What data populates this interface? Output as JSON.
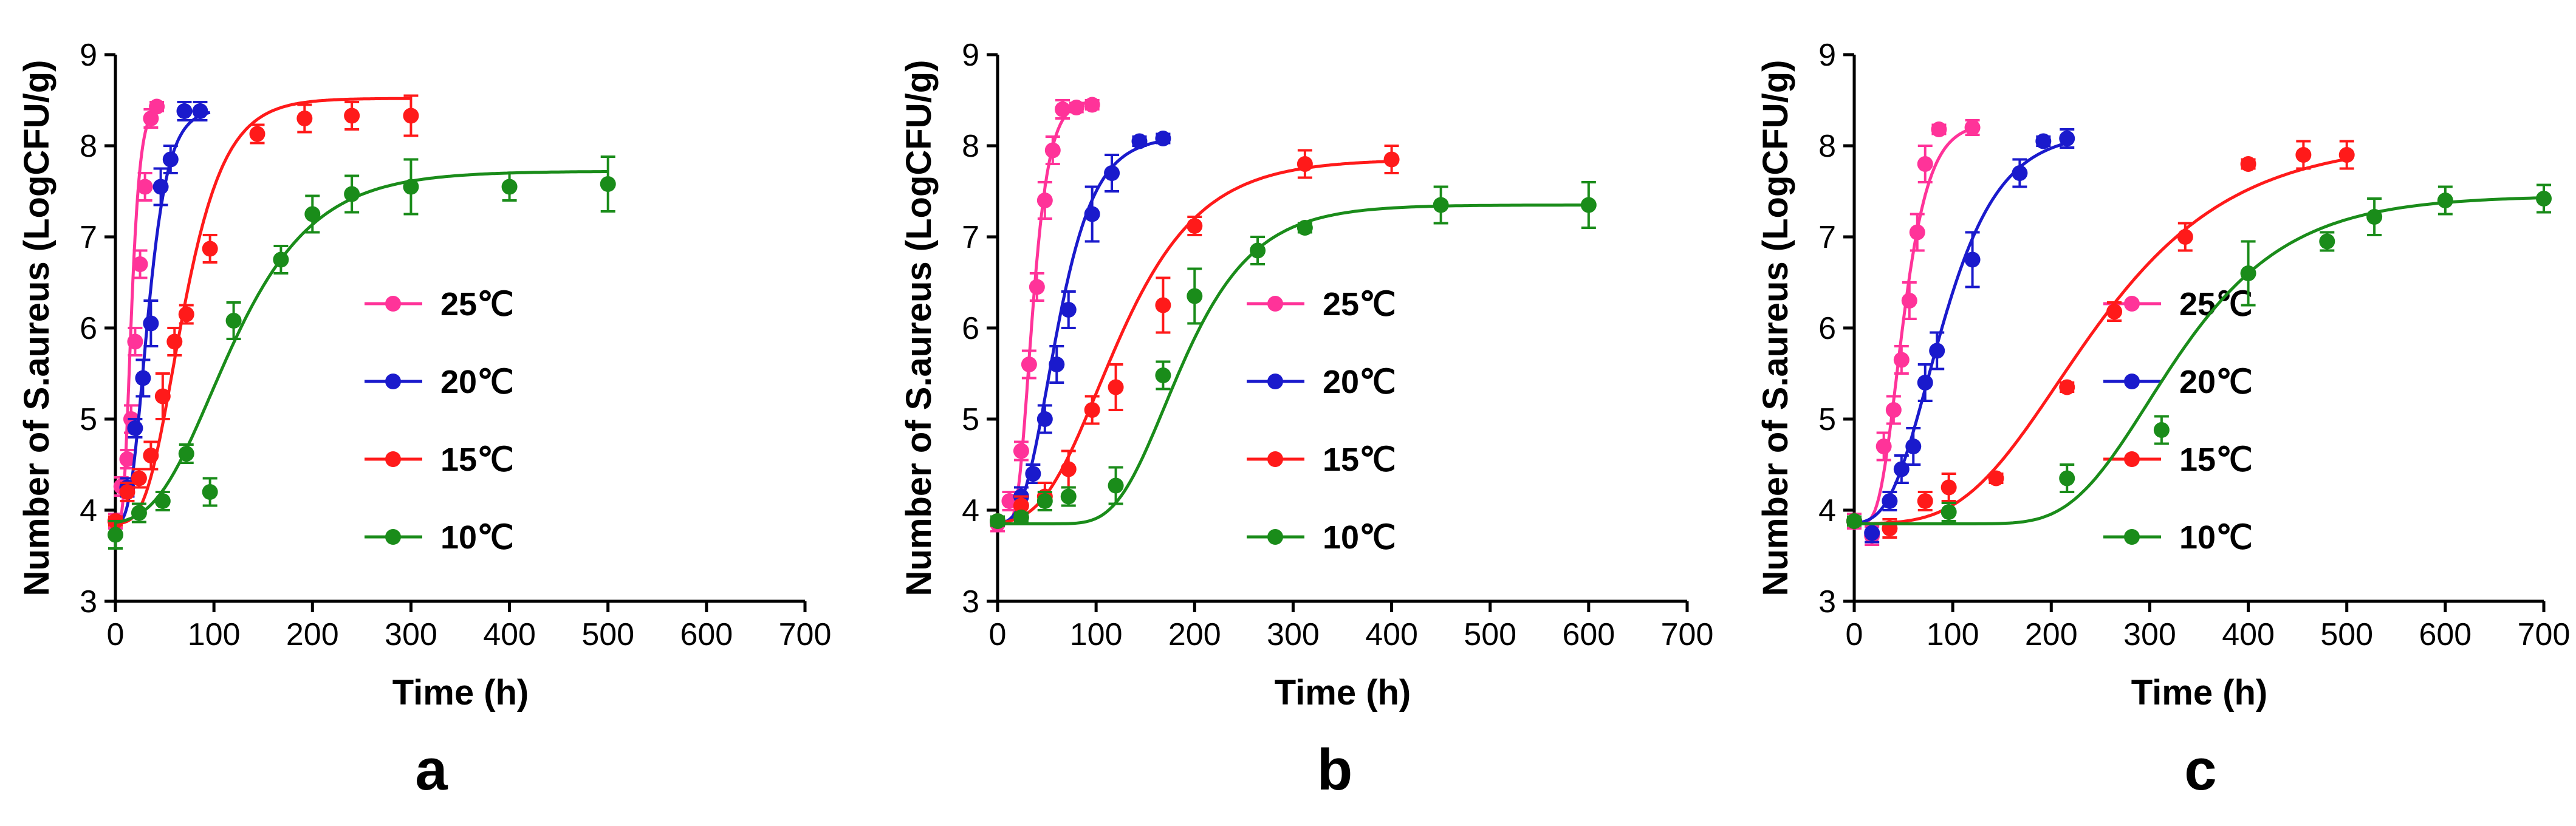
{
  "figure": {
    "panels": [
      "a",
      "b",
      "c"
    ]
  },
  "chart_data": [
    {
      "type": "scatter",
      "panel_label": "a",
      "xlabel": "Time (h)",
      "ylabel": "Number of S.aureus (LogCFU/g)",
      "xlim": [
        0,
        700
      ],
      "ylim": [
        3,
        9
      ],
      "xticks": [
        "0",
        "100",
        "200",
        "300",
        "400",
        "500",
        "600",
        "700"
      ],
      "yticks": [
        "3",
        "4",
        "5",
        "6",
        "7",
        "8",
        "9"
      ],
      "legend_position": "center-right",
      "series": [
        {
          "name": "25℃",
          "color": "#ff3399",
          "x": [
            0,
            6,
            12,
            16,
            20,
            25,
            30,
            36,
            42
          ],
          "y": [
            3.88,
            4.26,
            4.56,
            5.0,
            5.85,
            6.7,
            7.55,
            8.3,
            8.43
          ],
          "err": [
            0.08,
            0.1,
            0.1,
            0.15,
            0.15,
            0.15,
            0.15,
            0.1,
            0.05
          ],
          "fit": {
            "y0": 3.85,
            "ymax": 8.45,
            "mu": 0.28,
            "lag": 8,
            "xmax": 42
          }
        },
        {
          "name": "20℃",
          "color": "#1a1acc",
          "x": [
            0,
            12,
            20,
            28,
            36,
            46,
            56,
            70,
            86
          ],
          "y": [
            3.88,
            4.25,
            4.9,
            5.45,
            6.05,
            7.55,
            7.85,
            8.38,
            8.38
          ],
          "err": [
            0.05,
            0.1,
            0.1,
            0.2,
            0.25,
            0.2,
            0.15,
            0.1,
            0.1
          ],
          "fit": {
            "y0": 3.85,
            "ymax": 8.4,
            "mu": 0.12,
            "lag": 14,
            "xmax": 96
          }
        },
        {
          "name": "15℃",
          "color": "#ff1a1a",
          "x": [
            0,
            12,
            24,
            36,
            48,
            60,
            72,
            96,
            144,
            192,
            240,
            300
          ],
          "y": [
            3.88,
            4.2,
            4.35,
            4.6,
            5.25,
            5.85,
            6.15,
            6.87,
            8.13,
            8.3,
            8.33,
            8.33
          ],
          "err": [
            0.05,
            0.1,
            0.1,
            0.15,
            0.25,
            0.15,
            0.1,
            0.15,
            0.1,
            0.15,
            0.15,
            0.22
          ],
          "fit": {
            "y0": 3.85,
            "ymax": 8.52,
            "mu": 0.06,
            "lag": 30,
            "xmax": 300
          }
        },
        {
          "name": "10℃",
          "color": "#1a8c1a",
          "x": [
            0,
            24,
            48,
            72,
            96,
            120,
            168,
            200,
            240,
            300,
            400,
            500
          ],
          "y": [
            3.73,
            3.97,
            4.1,
            4.62,
            4.2,
            6.08,
            6.75,
            7.25,
            7.47,
            7.55,
            7.55,
            7.58
          ],
          "err": [
            0.15,
            0.1,
            0.1,
            0.1,
            0.15,
            0.2,
            0.15,
            0.2,
            0.2,
            0.3,
            0.15,
            0.3
          ],
          "fit": {
            "y0": 3.85,
            "ymax": 7.72,
            "mu": 0.025,
            "lag": 40,
            "xmax": 500
          }
        }
      ]
    },
    {
      "type": "scatter",
      "panel_label": "b",
      "xlabel": "Time (h)",
      "ylabel": "Number of S.aureus (LogCFU/g)",
      "xlim": [
        0,
        700
      ],
      "ylim": [
        3,
        9
      ],
      "xticks": [
        "0",
        "100",
        "200",
        "300",
        "400",
        "500",
        "600",
        "700"
      ],
      "yticks": [
        "3",
        "4",
        "5",
        "6",
        "7",
        "8",
        "9"
      ],
      "legend_position": "center-right",
      "series": [
        {
          "name": "25℃",
          "color": "#ff3399",
          "x": [
            0,
            12,
            24,
            32,
            40,
            48,
            56,
            66,
            80,
            96
          ],
          "y": [
            3.85,
            4.1,
            4.65,
            5.6,
            6.45,
            7.4,
            7.95,
            8.4,
            8.42,
            8.45
          ],
          "err": [
            0.08,
            0.1,
            0.1,
            0.15,
            0.15,
            0.2,
            0.15,
            0.1,
            0.05,
            0.05
          ],
          "fit": {
            "y0": 3.85,
            "ymax": 8.5,
            "mu": 0.15,
            "lag": 20,
            "xmax": 96
          }
        },
        {
          "name": "20℃",
          "color": "#1a1acc",
          "x": [
            0,
            24,
            36,
            48,
            60,
            72,
            96,
            116,
            144,
            168
          ],
          "y": [
            3.88,
            4.15,
            4.4,
            5.0,
            5.6,
            6.2,
            7.25,
            7.7,
            8.05,
            8.08
          ],
          "err": [
            0.05,
            0.1,
            0.1,
            0.15,
            0.2,
            0.2,
            0.3,
            0.2,
            0.05,
            0.05
          ],
          "fit": {
            "y0": 3.85,
            "ymax": 8.1,
            "mu": 0.06,
            "lag": 25,
            "xmax": 168
          }
        },
        {
          "name": "15℃",
          "color": "#ff1a1a",
          "x": [
            0,
            24,
            48,
            72,
            96,
            120,
            168,
            200,
            312,
            400
          ],
          "y": [
            3.88,
            4.05,
            4.15,
            4.45,
            5.1,
            5.35,
            6.25,
            7.12,
            7.8,
            7.85
          ],
          "err": [
            0.05,
            0.1,
            0.15,
            0.2,
            0.15,
            0.25,
            0.3,
            0.1,
            0.15,
            0.15
          ],
          "fit": {
            "y0": 3.85,
            "ymax": 7.85,
            "mu": 0.026,
            "lag": 45,
            "xmax": 400
          }
        },
        {
          "name": "10℃",
          "color": "#1a8c1a",
          "x": [
            0,
            24,
            48,
            72,
            120,
            168,
            200,
            264,
            312,
            450,
            600
          ],
          "y": [
            3.88,
            3.92,
            4.1,
            4.15,
            4.27,
            5.48,
            6.35,
            6.85,
            7.1,
            7.35,
            7.35
          ],
          "err": [
            0.05,
            0.05,
            0.1,
            0.1,
            0.2,
            0.15,
            0.3,
            0.15,
            0.05,
            0.2,
            0.25
          ],
          "fit": {
            "y0": 3.85,
            "ymax": 7.35,
            "mu": 0.026,
            "lag": 120,
            "xmax": 600
          }
        }
      ]
    },
    {
      "type": "scatter",
      "panel_label": "c",
      "xlabel": "Time (h)",
      "ylabel": "Number of S.aureus (LogCFU/g)",
      "xlim": [
        0,
        700
      ],
      "ylim": [
        3,
        9
      ],
      "xticks": [
        "0",
        "100",
        "200",
        "300",
        "400",
        "500",
        "600",
        "700"
      ],
      "yticks": [
        "3",
        "4",
        "5",
        "6",
        "7",
        "8",
        "9"
      ],
      "legend_position": "center-right",
      "series": [
        {
          "name": "25℃",
          "color": "#ff3399",
          "x": [
            0,
            18,
            30,
            40,
            48,
            56,
            64,
            72,
            86,
            120
          ],
          "y": [
            3.88,
            3.72,
            4.7,
            5.1,
            5.65,
            6.3,
            7.05,
            7.8,
            8.18,
            8.2
          ],
          "err": [
            0.08,
            0.1,
            0.15,
            0.15,
            0.15,
            0.2,
            0.2,
            0.2,
            0.05,
            0.08
          ],
          "fit": {
            "y0": 3.85,
            "ymax": 8.25,
            "mu": 0.09,
            "lag": 25,
            "xmax": 120
          }
        },
        {
          "name": "20℃",
          "color": "#1a1acc",
          "x": [
            0,
            18,
            36,
            48,
            60,
            72,
            84,
            120,
            168,
            192,
            216
          ],
          "y": [
            3.88,
            3.75,
            4.1,
            4.45,
            4.7,
            5.4,
            5.75,
            6.75,
            7.7,
            8.05,
            8.08
          ],
          "err": [
            0.05,
            0.1,
            0.1,
            0.15,
            0.2,
            0.2,
            0.2,
            0.3,
            0.15,
            0.05,
            0.1
          ],
          "fit": {
            "y0": 3.85,
            "ymax": 8.15,
            "mu": 0.04,
            "lag": 35,
            "xmax": 216
          }
        },
        {
          "name": "15℃",
          "color": "#ff1a1a",
          "x": [
            0,
            36,
            72,
            96,
            144,
            216,
            264,
            336,
            400,
            456,
            500
          ],
          "y": [
            3.88,
            3.8,
            4.1,
            4.25,
            4.35,
            5.35,
            6.18,
            7.0,
            7.8,
            7.9,
            7.9
          ],
          "err": [
            0.05,
            0.1,
            0.1,
            0.15,
            0.05,
            0.05,
            0.1,
            0.15,
            0.05,
            0.15,
            0.15
          ],
          "fit": {
            "y0": 3.85,
            "ymax": 8.05,
            "mu": 0.016,
            "lag": 110,
            "xmax": 500
          }
        },
        {
          "name": "10℃",
          "color": "#1a8c1a",
          "x": [
            0,
            96,
            216,
            312,
            400,
            480,
            528,
            600,
            700
          ],
          "y": [
            3.88,
            3.98,
            4.35,
            4.88,
            6.6,
            6.95,
            7.22,
            7.4,
            7.42
          ],
          "err": [
            0.05,
            0.1,
            0.15,
            0.15,
            0.35,
            0.1,
            0.2,
            0.15,
            0.15
          ],
          "fit": {
            "y0": 3.85,
            "ymax": 7.45,
            "mu": 0.017,
            "lag": 220,
            "xmax": 700
          }
        }
      ]
    }
  ]
}
